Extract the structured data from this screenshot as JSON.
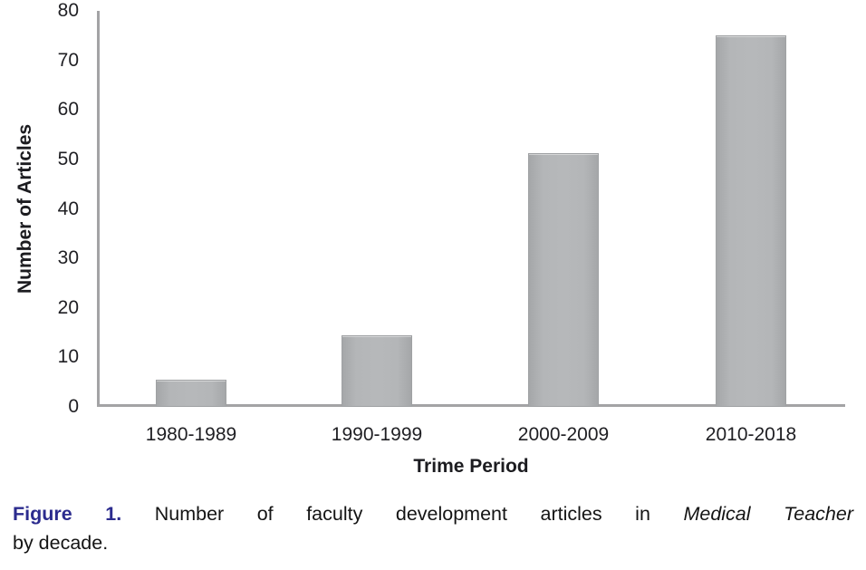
{
  "chart_data": {
    "type": "bar",
    "categories": [
      "1980-1989",
      "1990-1999",
      "2000-2009",
      "2010-2018"
    ],
    "values": [
      5,
      14,
      51,
      75
    ],
    "title": "",
    "xlabel": "Trime Period",
    "ylabel": "Number of Articles",
    "ylim": [
      0,
      80
    ],
    "y_ticks": [
      80,
      70,
      60,
      50,
      40,
      30,
      20,
      10,
      0
    ],
    "grid": false,
    "legend_position": "none",
    "bar_color": "#b2b4b6",
    "axis_color": "#a3a3a5"
  },
  "caption": {
    "label": "Figure 1.",
    "text_before_italic": "Number of faculty development articles in",
    "italic_text": "Medical Teacher",
    "line2": "by decade.",
    "label_color": "#2b2b8e"
  }
}
